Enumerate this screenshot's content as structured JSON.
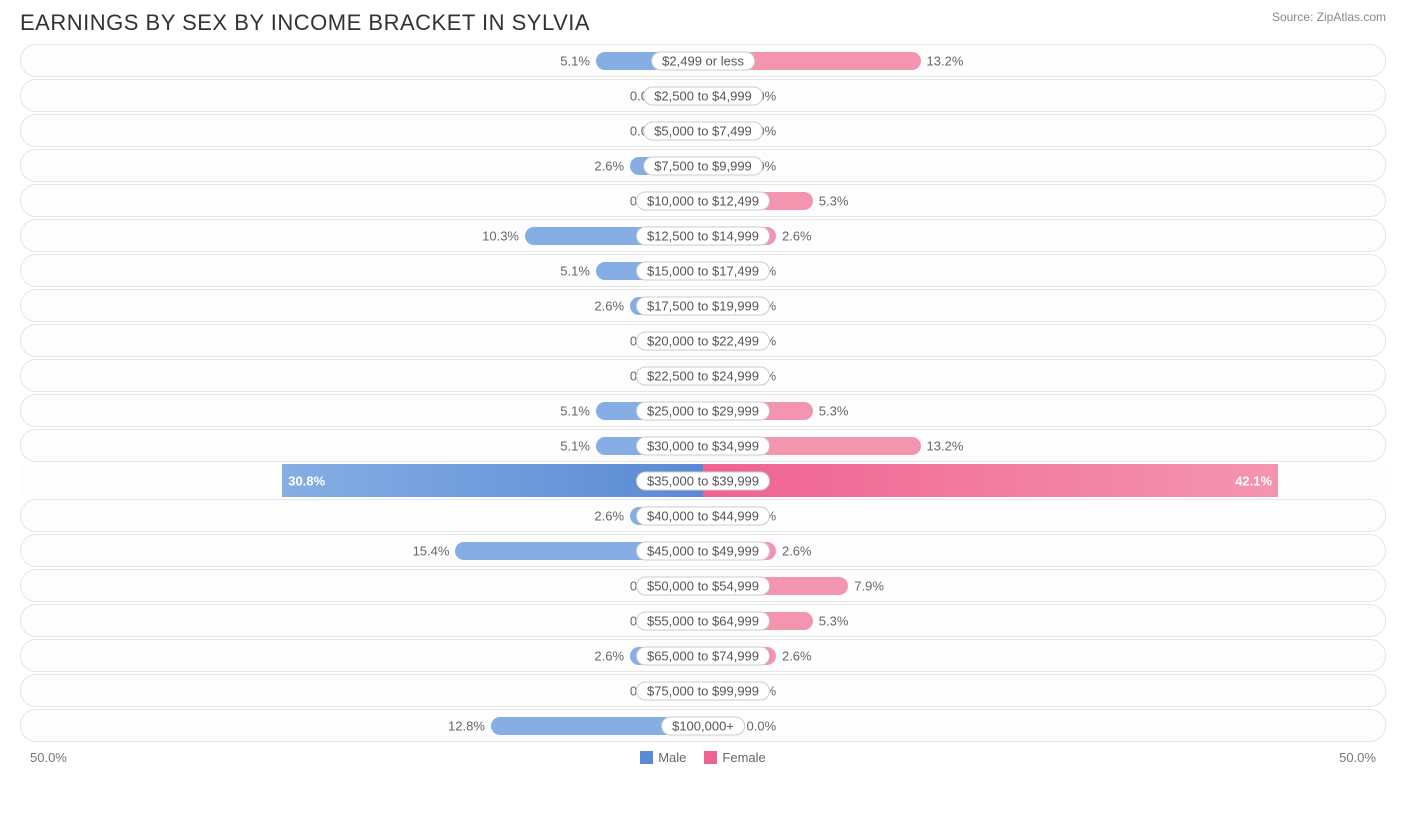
{
  "title": "EARNINGS BY SEX BY INCOME BRACKET IN SYLVIA",
  "source": "Source: ZipAtlas.com",
  "axis_max_pct": 50.0,
  "axis_left_label": "50.0%",
  "axis_right_label": "50.0%",
  "legend": {
    "male": "Male",
    "female": "Female"
  },
  "inner_stub_pct": 5.5,
  "colors": {
    "male_bar": "#86aee4",
    "female_bar": "#f495b0",
    "male_highlight_from": "#86aee4",
    "male_highlight_to": "#5a8ad4",
    "female_highlight_from": "#f06292",
    "female_highlight_to": "#f495b0",
    "row_border": "#e5e5e5",
    "row_bg": "#fdfdfd",
    "pill_border": "#cccccc",
    "text": "#666666",
    "title_text": "#333333",
    "source_text": "#888888",
    "background": "#ffffff"
  },
  "typography": {
    "title_fontsize": 22,
    "label_fontsize": 13,
    "source_fontsize": 12
  },
  "rows": [
    {
      "label": "$2,499 or less",
      "male": 5.1,
      "female": 13.2,
      "highlight": false
    },
    {
      "label": "$2,500 to $4,999",
      "male": 0.0,
      "female": 0.0,
      "highlight": false
    },
    {
      "label": "$5,000 to $7,499",
      "male": 0.0,
      "female": 0.0,
      "highlight": false
    },
    {
      "label": "$7,500 to $9,999",
      "male": 2.6,
      "female": 0.0,
      "highlight": false
    },
    {
      "label": "$10,000 to $12,499",
      "male": 0.0,
      "female": 5.3,
      "highlight": false
    },
    {
      "label": "$12,500 to $14,999",
      "male": 10.3,
      "female": 2.6,
      "highlight": false
    },
    {
      "label": "$15,000 to $17,499",
      "male": 5.1,
      "female": 0.0,
      "highlight": false
    },
    {
      "label": "$17,500 to $19,999",
      "male": 2.6,
      "female": 0.0,
      "highlight": false
    },
    {
      "label": "$20,000 to $22,499",
      "male": 0.0,
      "female": 0.0,
      "highlight": false
    },
    {
      "label": "$22,500 to $24,999",
      "male": 0.0,
      "female": 0.0,
      "highlight": false
    },
    {
      "label": "$25,000 to $29,999",
      "male": 5.1,
      "female": 5.3,
      "highlight": false
    },
    {
      "label": "$30,000 to $34,999",
      "male": 5.1,
      "female": 13.2,
      "highlight": false
    },
    {
      "label": "$35,000 to $39,999",
      "male": 30.8,
      "female": 42.1,
      "highlight": true
    },
    {
      "label": "$40,000 to $44,999",
      "male": 2.6,
      "female": 0.0,
      "highlight": false
    },
    {
      "label": "$45,000 to $49,999",
      "male": 15.4,
      "female": 2.6,
      "highlight": false
    },
    {
      "label": "$50,000 to $54,999",
      "male": 0.0,
      "female": 7.9,
      "highlight": false
    },
    {
      "label": "$55,000 to $64,999",
      "male": 0.0,
      "female": 5.3,
      "highlight": false
    },
    {
      "label": "$65,000 to $74,999",
      "male": 2.6,
      "female": 2.6,
      "highlight": false
    },
    {
      "label": "$75,000 to $99,999",
      "male": 0.0,
      "female": 0.0,
      "highlight": false
    },
    {
      "label": "$100,000+",
      "male": 12.8,
      "female": 0.0,
      "highlight": false
    }
  ]
}
